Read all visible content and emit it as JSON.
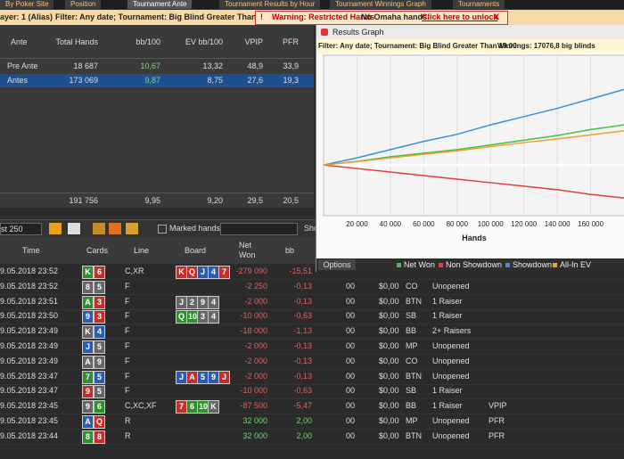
{
  "tabs": [
    "By Poker Site",
    "Position",
    "Tournament Ante",
    "Tournament Results by Hour",
    "Tournament Winnings Graph",
    "Tournaments"
  ],
  "filter_bar": {
    "player": "ayer: 1 (Alias)",
    "filter": "Filter: Any date; Tournament: Big Blind Greater Than 19.00",
    "warning": "Warning: Restricted Hands",
    "no_omaha": "No Omaha hands.",
    "unlock": "Click here to unlock",
    "close": "X"
  },
  "stats": {
    "headers": [
      "Ante",
      "Total Hands",
      "bb/100",
      "EV bb/100",
      "VPIP",
      "PFR"
    ],
    "rows": [
      [
        "Pre Ante",
        "18 687",
        "10,67",
        "13,32",
        "48,9",
        "33,9"
      ],
      [
        "Antes",
        "173 069",
        "9,87",
        "8,75",
        "27,6",
        "19,3"
      ]
    ],
    "totals": [
      "191 756",
      "9,95",
      "9,20",
      "29,5",
      "20,5"
    ]
  },
  "toolbar": {
    "limit": "st 250",
    "marked": "Marked hands",
    "show": "Sho"
  },
  "hands": {
    "headers": [
      "Time",
      "Cards",
      "Line",
      "Board",
      "Net Won",
      "bb"
    ],
    "rows": [
      {
        "time": "9.05.2018 23:52",
        "cards": [
          {
            "rank": "K",
            "color": "#2f8f2f"
          },
          {
            "rank": "6",
            "color": "#c0302c"
          }
        ],
        "line": "C,XR",
        "board": [
          {
            "rank": "K",
            "color": "#c0302c"
          },
          {
            "rank": "Q",
            "color": "#c0302c"
          },
          {
            "rank": "J",
            "color": "#2a5db0"
          },
          {
            "rank": "4",
            "color": "#2a5db0"
          },
          {
            "rank": "7",
            "color": "#c0302c"
          }
        ],
        "net": "-279 090",
        "bb": "-15,51"
      },
      {
        "time": "9.05.2018 23:52",
        "cards": [
          {
            "rank": "8",
            "color": "#666666"
          },
          {
            "rank": "5",
            "color": "#666666"
          }
        ],
        "line": "F",
        "board": [],
        "net": "-2 250",
        "bb": "-0,13",
        "cols": [
          "00",
          "$0,00",
          "CO",
          "Unopened"
        ]
      },
      {
        "time": "9.05.2018 23:51",
        "cards": [
          {
            "rank": "A",
            "color": "#2f8f2f"
          },
          {
            "rank": "3",
            "color": "#c0302c"
          }
        ],
        "line": "F",
        "board": [
          {
            "rank": "J",
            "color": "#666666"
          },
          {
            "rank": "2",
            "color": "#666666"
          },
          {
            "rank": "9",
            "color": "#666666"
          },
          {
            "rank": "4",
            "color": "#666666"
          }
        ],
        "net": "-2 000",
        "bb": "-0,13",
        "cols": [
          "00",
          "$0,00",
          "BTN",
          "1 Raiser"
        ]
      },
      {
        "time": "9.05.2018 23:50",
        "cards": [
          {
            "rank": "9",
            "color": "#2a5db0"
          },
          {
            "rank": "3",
            "color": "#c0302c"
          }
        ],
        "line": "F",
        "board": [
          {
            "rank": "Q",
            "color": "#2f8f2f"
          },
          {
            "rank": "10",
            "color": "#2f8f2f"
          },
          {
            "rank": "3",
            "color": "#666666"
          },
          {
            "rank": "4",
            "color": "#666666"
          }
        ],
        "net": "-10 000",
        "bb": "-0,63",
        "cols": [
          "00",
          "$0,00",
          "SB",
          "1 Raiser"
        ]
      },
      {
        "time": "9.05.2018 23:49",
        "cards": [
          {
            "rank": "K",
            "color": "#666666"
          },
          {
            "rank": "4",
            "color": "#2a5db0"
          }
        ],
        "line": "F",
        "board": [],
        "net": "-18 000",
        "bb": "-1,13",
        "cols": [
          "00",
          "$0,00",
          "BB",
          "2+ Raisers"
        ]
      },
      {
        "time": "9.05.2018 23:49",
        "cards": [
          {
            "rank": "J",
            "color": "#2a5db0"
          },
          {
            "rank": "5",
            "color": "#666666"
          }
        ],
        "line": "F",
        "board": [],
        "net": "-2 000",
        "bb": "-0,13",
        "cols": [
          "00",
          "$0,00",
          "MP",
          "Unopened"
        ]
      },
      {
        "time": "9.05.2018 23:49",
        "cards": [
          {
            "rank": "A",
            "color": "#666666"
          },
          {
            "rank": "9",
            "color": "#666666"
          }
        ],
        "line": "F",
        "board": [],
        "net": "-2 000",
        "bb": "-0,13",
        "cols": [
          "00",
          "$0,00",
          "CO",
          "Unopened"
        ]
      },
      {
        "time": "9.05.2018 23:47",
        "cards": [
          {
            "rank": "7",
            "color": "#2f8f2f"
          },
          {
            "rank": "5",
            "color": "#2a5db0"
          }
        ],
        "line": "F",
        "board": [
          {
            "rank": "J",
            "color": "#2a5db0"
          },
          {
            "rank": "A",
            "color": "#c0302c"
          },
          {
            "rank": "5",
            "color": "#2a5db0"
          },
          {
            "rank": "9",
            "color": "#2a5db0"
          },
          {
            "rank": "J",
            "color": "#c0302c"
          }
        ],
        "net": "-2 000",
        "bb": "-0,13",
        "cols": [
          "00",
          "$0,00",
          "BTN",
          "Unopened"
        ]
      },
      {
        "time": "9.05.2018 23:47",
        "cards": [
          {
            "rank": "9",
            "color": "#c0302c"
          },
          {
            "rank": "5",
            "color": "#666666"
          }
        ],
        "line": "F",
        "board": [],
        "net": "-10 000",
        "bb": "-0,63",
        "cols": [
          "00",
          "$0,00",
          "SB",
          "1 Raiser"
        ]
      },
      {
        "time": "9.05.2018 23:45",
        "cards": [
          {
            "rank": "9",
            "color": "#666666"
          },
          {
            "rank": "6",
            "color": "#2f8f2f"
          }
        ],
        "line": "C,XC,XF",
        "board": [
          {
            "rank": "7",
            "color": "#c0302c"
          },
          {
            "rank": "6",
            "color": "#2f8f2f"
          },
          {
            "rank": "10",
            "color": "#2f8f2f"
          },
          {
            "rank": "K",
            "color": "#666666"
          }
        ],
        "net": "-87 500",
        "bb": "-5,47",
        "cols": [
          "00",
          "$0,00",
          "BB",
          "1 Raiser",
          "VPIP"
        ]
      },
      {
        "time": "9.05.2018 23:45",
        "cards": [
          {
            "rank": "A",
            "color": "#2a5db0"
          },
          {
            "rank": "Q",
            "color": "#c0302c"
          }
        ],
        "line": "R",
        "board": [],
        "net": "32 000",
        "bb": "2,00",
        "cols": [
          "00",
          "$0,00",
          "MP",
          "Unopened",
          "PFR"
        ]
      },
      {
        "time": "9.05.2018 23:44",
        "cards": [
          {
            "rank": "8",
            "color": "#2f8f2f"
          },
          {
            "rank": "8",
            "color": "#c0302c"
          }
        ],
        "line": "R",
        "board": [],
        "net": "32 000",
        "bb": "2,00",
        "cols": [
          "00",
          "$0,00",
          "BTN",
          "Unopened",
          "PFR"
        ]
      }
    ]
  },
  "graph_window": {
    "title": "Results Graph",
    "filter": "Filter: Any date; Tournament: Big Blind Greater Than 19.00",
    "winnings": "Winnings: 17076,8 big blinds",
    "options": "Options"
  },
  "chart_data": {
    "type": "line",
    "x_label": "Hands",
    "x": [
      0,
      20000,
      40000,
      60000,
      80000,
      100000,
      120000,
      140000,
      160000,
      180000
    ],
    "xlim": [
      0,
      180500
    ],
    "ylim": [
      -21500,
      46500
    ],
    "xticks": [
      {
        "value": 20000,
        "label": "20 000"
      },
      {
        "value": 40000,
        "label": "40 000"
      },
      {
        "value": 60000,
        "label": "60 000"
      },
      {
        "value": 80000,
        "label": "80 000"
      },
      {
        "value": 100000,
        "label": "100 000"
      },
      {
        "value": 120000,
        "label": "120 000"
      },
      {
        "value": 140000,
        "label": "140 000"
      },
      {
        "value": 160000,
        "label": "160 000"
      }
    ],
    "grid": true,
    "series": [
      {
        "name": "Net Won",
        "color": "#3ec43e",
        "values": [
          0,
          1500,
          3500,
          5000,
          6500,
          8500,
          10500,
          12500,
          15000,
          17000
        ]
      },
      {
        "name": "Non Showdown",
        "color": "#e0403a",
        "values": [
          0,
          -1500,
          -3000,
          -4500,
          -6000,
          -7500,
          -9000,
          -10500,
          -12500,
          -14000
        ]
      },
      {
        "name": "Showdown",
        "color": "#3a8fe0",
        "values": [
          0,
          3000,
          6500,
          10000,
          13000,
          17000,
          20500,
          24000,
          28000,
          32000
        ]
      },
      {
        "name": "All-In EV",
        "color": "#f0a030",
        "values": [
          0,
          1400,
          3000,
          4500,
          6000,
          7800,
          9500,
          11000,
          12800,
          14500
        ]
      }
    ]
  }
}
